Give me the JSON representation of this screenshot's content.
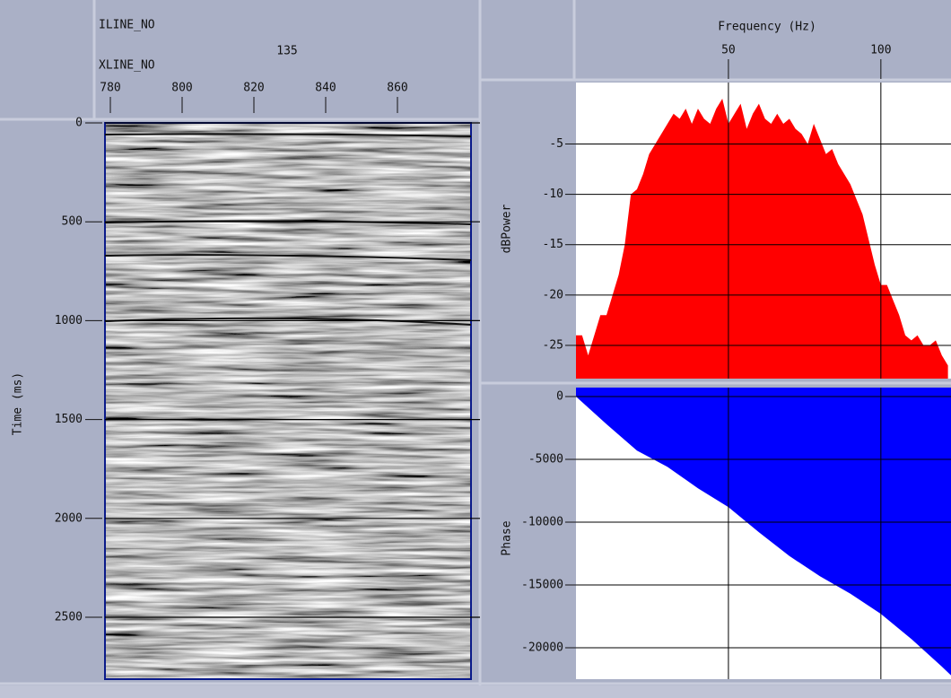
{
  "seismic": {
    "type": "section",
    "iline_label": "ILINE_NO",
    "iline": 135,
    "xline_label": "XLINE_NO",
    "ylabel": "Time (ms)",
    "xlim": [
      778.5,
      880.5
    ],
    "xticks": [
      780,
      800,
      820,
      840,
      860
    ],
    "ylim": [
      0,
      2813
    ],
    "yticks": [
      0,
      500,
      1000,
      1500,
      2000,
      2500
    ],
    "grid": true
  },
  "frequency_axis": {
    "label": "Frequency (Hz)",
    "xlim": [
      0,
      123
    ],
    "xticks": [
      50,
      100
    ]
  },
  "spectrum": {
    "type": "area",
    "ylabel": "dBPower",
    "color": "#ff0000",
    "fill_to": "bottom",
    "x": [
      0,
      2,
      4,
      6,
      8,
      10,
      12,
      14,
      16,
      18,
      20,
      22,
      24,
      26,
      28,
      30,
      32,
      34,
      36,
      38,
      40,
      42,
      44,
      46,
      48,
      50,
      52,
      54,
      56,
      58,
      60,
      62,
      64,
      66,
      68,
      70,
      72,
      74,
      76,
      78,
      80,
      82,
      84,
      86,
      88,
      90,
      92,
      94,
      96,
      98,
      100,
      102,
      104,
      106,
      108,
      110,
      112,
      114,
      116,
      118,
      120,
      122
    ],
    "values": [
      -24,
      -24,
      -26,
      -24,
      -22,
      -22,
      -20,
      -18,
      -15,
      -10,
      -9.5,
      -8,
      -6,
      -5,
      -4,
      -3,
      -2,
      -2.5,
      -1.5,
      -3,
      -1.5,
      -2.5,
      -3,
      -1.5,
      -0.5,
      -3,
      -2,
      -1,
      -3.5,
      -2,
      -1,
      -2.5,
      -3,
      -2,
      -3,
      -2.5,
      -3.5,
      -4,
      -5,
      -3,
      -4.5,
      -6,
      -5.5,
      -7,
      -8,
      -9,
      -10.5,
      -12,
      -14.5,
      -17,
      -19,
      -19,
      -20.5,
      -22,
      -24,
      -24.5,
      -24,
      -25,
      -25,
      -24.5,
      -26,
      -27
    ],
    "ylim": [
      -28.3,
      1.1
    ],
    "yticks": [
      -25,
      -20,
      -15,
      -10,
      -5
    ],
    "grid": true
  },
  "phase": {
    "type": "area",
    "ylabel": "Phase",
    "color": "#0000ff",
    "fill_to": "top",
    "x": [
      0,
      10,
      20,
      30,
      40,
      50,
      60,
      70,
      80,
      90,
      100,
      110,
      120,
      123
    ],
    "values": [
      0,
      -2200,
      -4300,
      -5600,
      -7300,
      -8800,
      -10800,
      -12700,
      -14300,
      -15700,
      -17300,
      -19300,
      -21500,
      -22200
    ],
    "ylim": [
      -22500,
      714
    ],
    "yticks": [
      0,
      -5000,
      -10000,
      -15000,
      -20000
    ],
    "grid": true
  }
}
